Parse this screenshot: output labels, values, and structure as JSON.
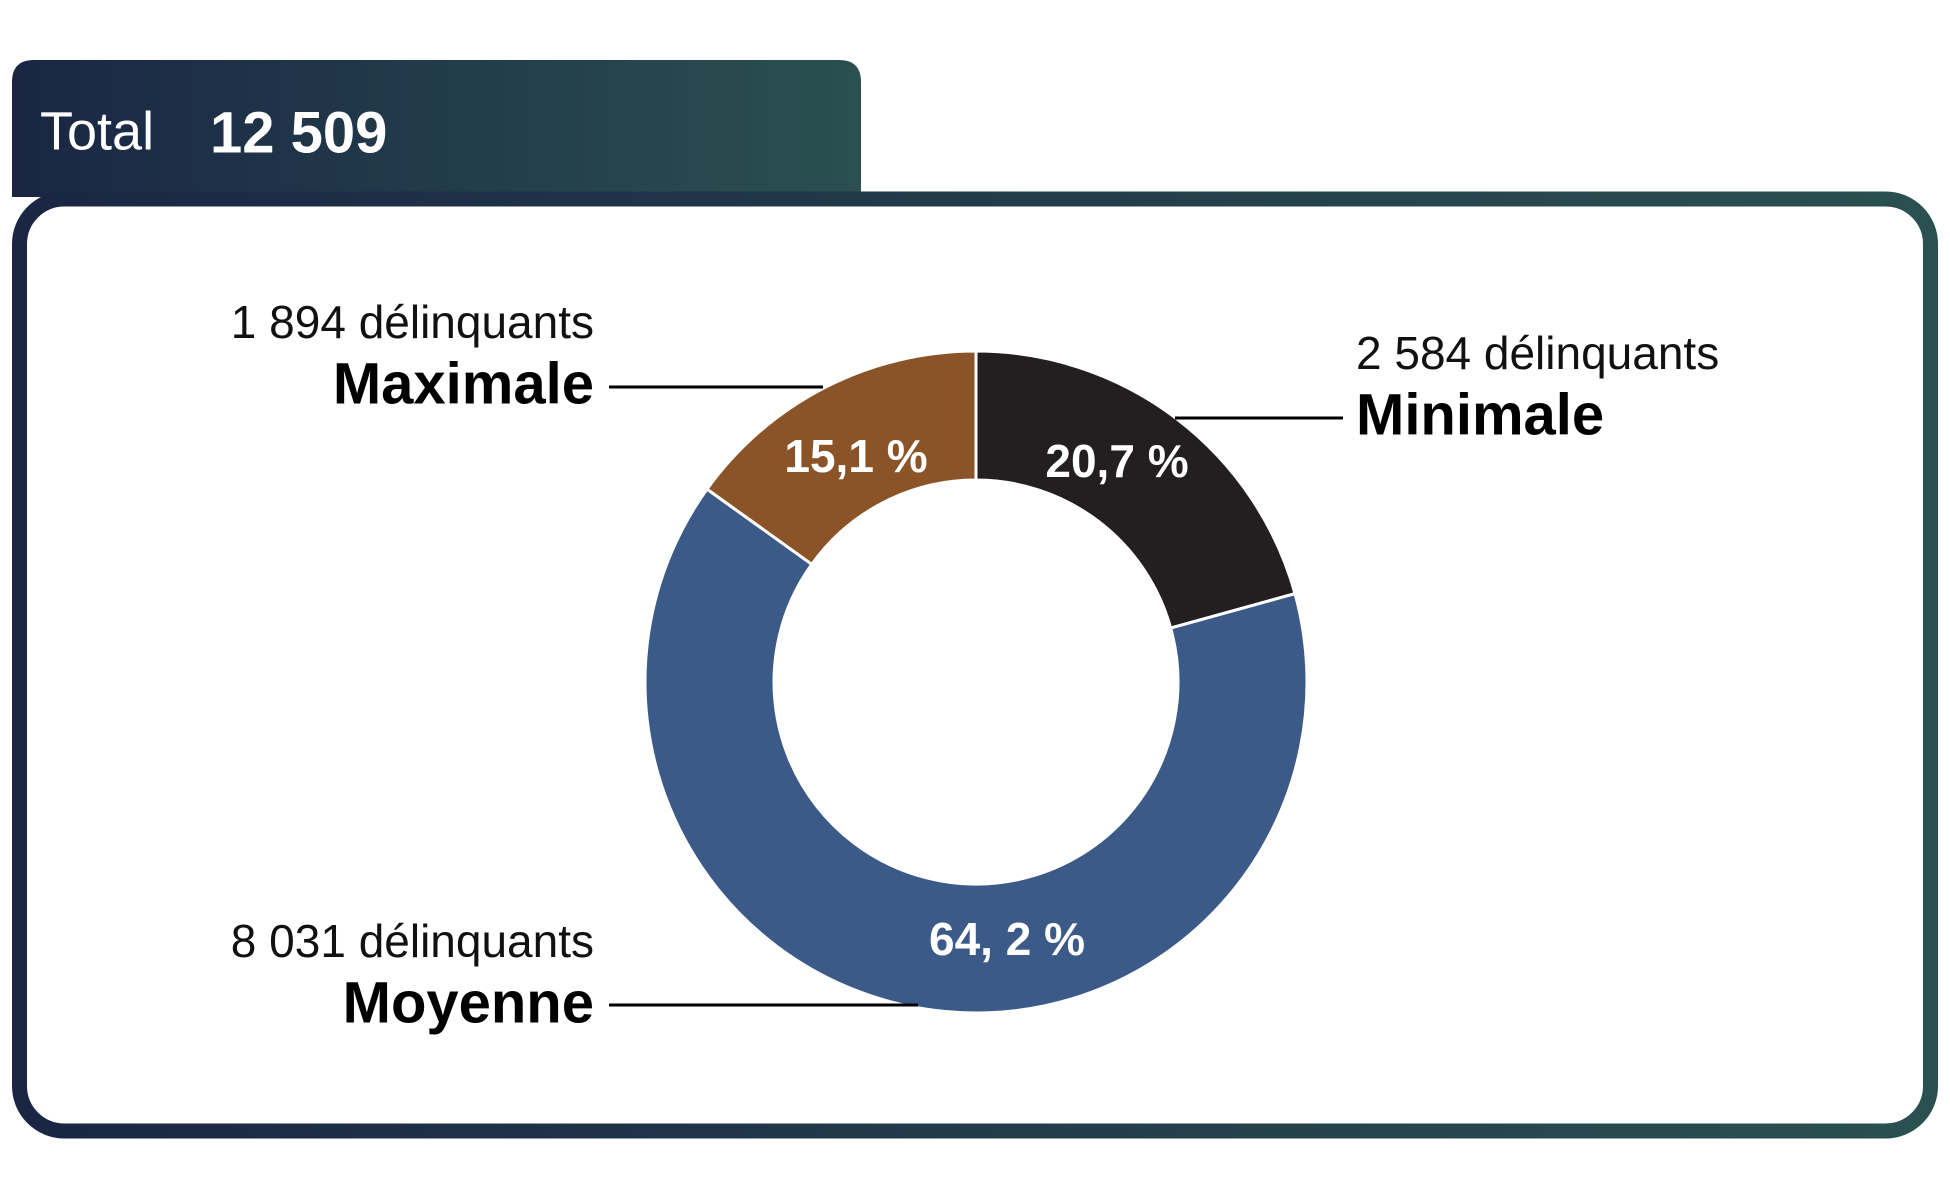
{
  "chart_data": {
    "type": "donut",
    "total_label": "Total",
    "total": "12 509",
    "categories": [
      "Minimale",
      "Moyenne",
      "Maximale"
    ],
    "values": [
      20.7,
      64.2,
      15.1
    ],
    "value_labels": [
      "20,7 %",
      "64, 2 %",
      "15,1 %"
    ],
    "count_labels": [
      "2 584 délinquants",
      "8 031 délinquants",
      "1 894 délinquants"
    ],
    "colors": [
      "#231f20",
      "#3c5a87",
      "#8b5428"
    ]
  }
}
